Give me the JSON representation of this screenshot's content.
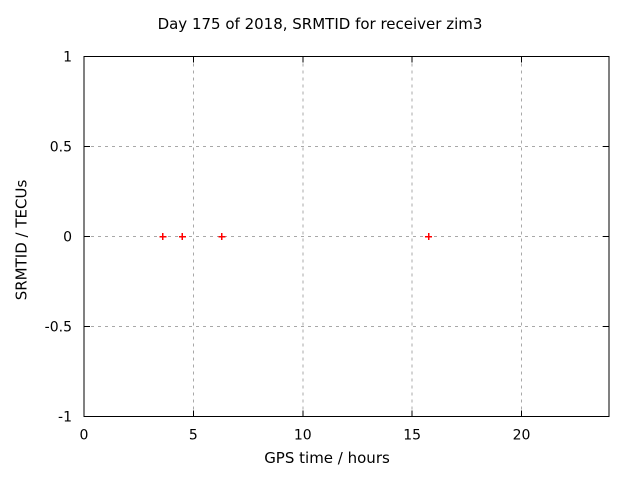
{
  "page": {
    "background_color": "#ffffff"
  },
  "chart_data": {
    "type": "scatter",
    "title": "Day 175 of 2018, SRMTID for receiver zim3",
    "xlabel": "GPS time / hours",
    "ylabel": "SRMTID / TECUs",
    "xlim": [
      0,
      24
    ],
    "ylim": [
      -1,
      1
    ],
    "xticks": [
      0,
      5,
      10,
      15,
      20
    ],
    "yticks": [
      -1,
      -0.5,
      0,
      0.5,
      1
    ],
    "grid": true,
    "legend_position": "none",
    "series": [
      {
        "name": "SRMTID",
        "marker": "plus",
        "color": "#ff0000",
        "points": [
          {
            "x": 3.6,
            "y": 0
          },
          {
            "x": 4.5,
            "y": 0
          },
          {
            "x": 6.3,
            "y": 0
          },
          {
            "x": 15.75,
            "y": 0
          }
        ]
      }
    ],
    "style": {
      "axis_color": "#000000",
      "grid_color": "#a8a8a8",
      "text_color": "#000000",
      "background": "#ffffff"
    }
  }
}
